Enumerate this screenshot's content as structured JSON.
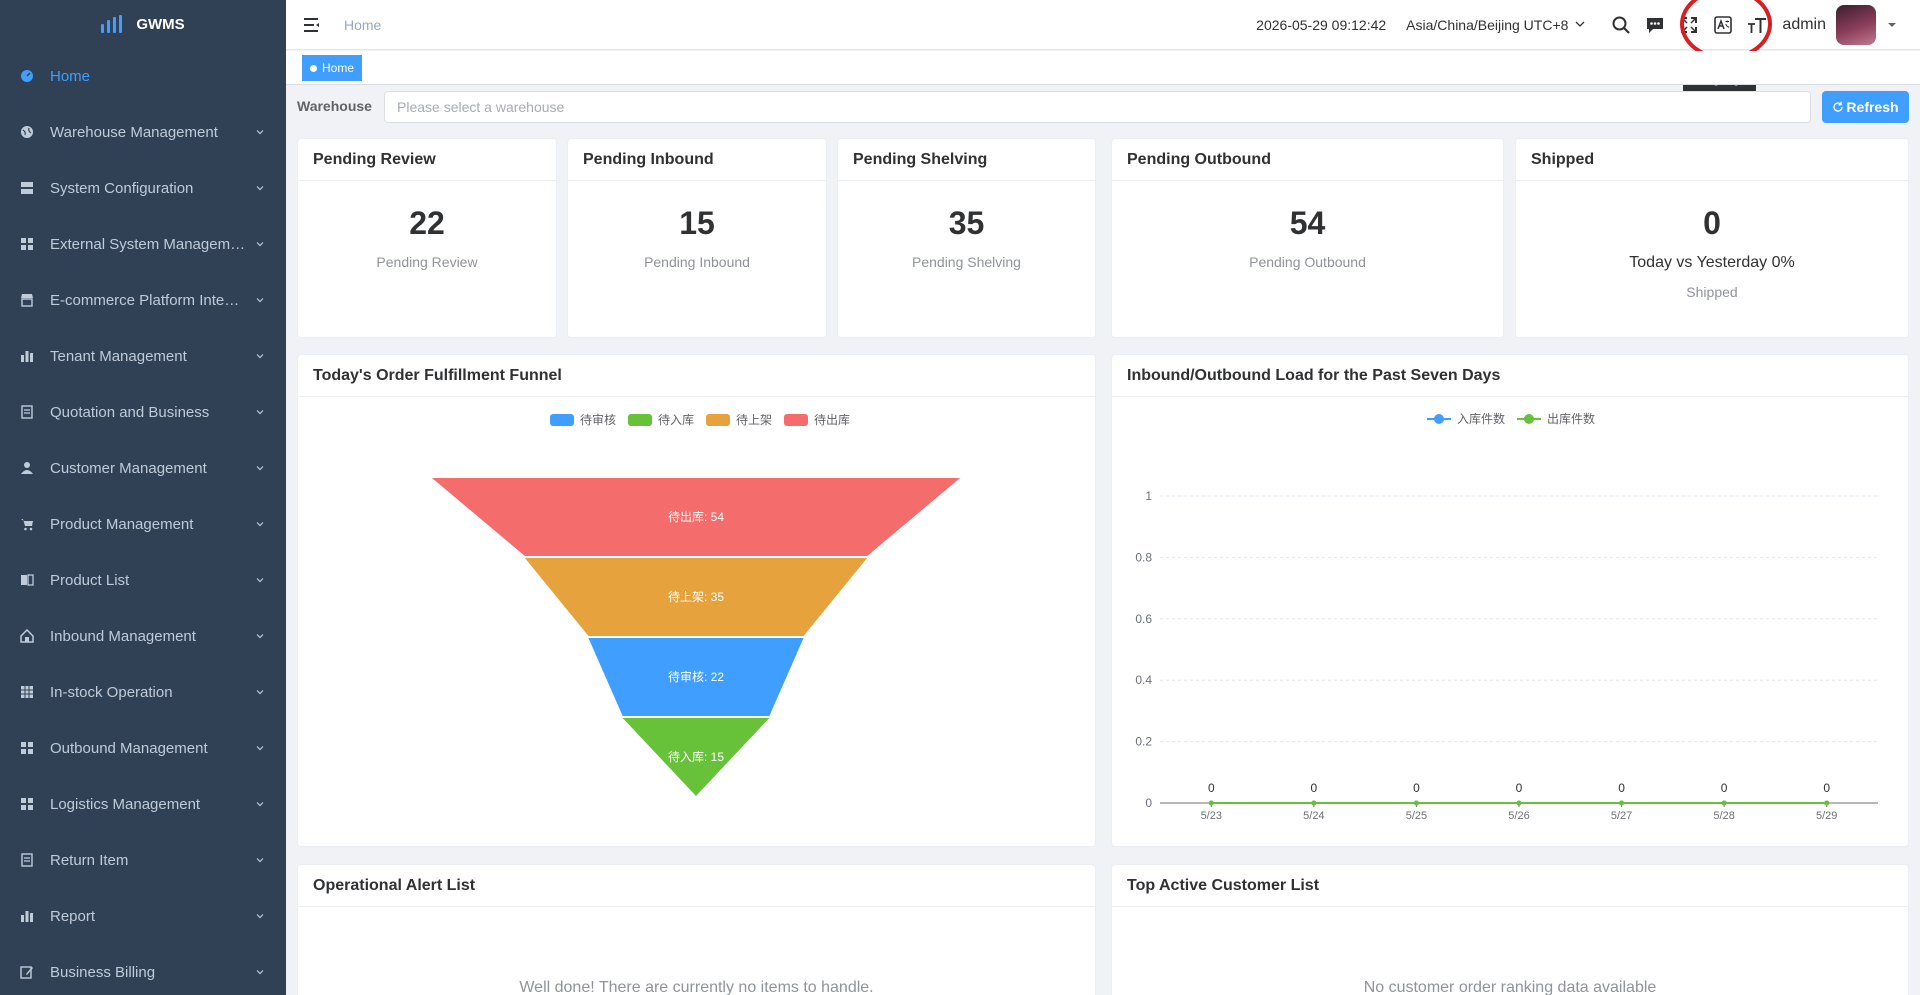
{
  "app": {
    "name": "GWMS"
  },
  "sidebar": {
    "items": [
      {
        "label": "Home",
        "icon": "dashboard-icon",
        "active": true,
        "has_children": false
      },
      {
        "label": "Warehouse Management",
        "icon": "globe-icon",
        "has_children": true
      },
      {
        "label": "System Configuration",
        "icon": "server-icon",
        "has_children": true
      },
      {
        "label": "External System Management",
        "icon": "grid-icon",
        "has_children": true
      },
      {
        "label": "E-commerce Platform Integr…",
        "icon": "store-icon",
        "has_children": true
      },
      {
        "label": "Tenant Management",
        "icon": "bar-chart-icon",
        "has_children": true
      },
      {
        "label": "Quotation and Business",
        "icon": "document-icon",
        "has_children": true
      },
      {
        "label": "Customer Management",
        "icon": "user-icon",
        "has_children": true
      },
      {
        "label": "Product Management",
        "icon": "cart-icon",
        "has_children": true
      },
      {
        "label": "Product List",
        "icon": "book-icon",
        "has_children": true
      },
      {
        "label": "Inbound Management",
        "icon": "home-icon",
        "has_children": true
      },
      {
        "label": "In-stock Operation",
        "icon": "table-icon",
        "has_children": true
      },
      {
        "label": "Outbound Management",
        "icon": "grid-icon",
        "has_children": true
      },
      {
        "label": "Logistics Management",
        "icon": "grid-icon",
        "has_children": true
      },
      {
        "label": "Return Item",
        "icon": "document-icon",
        "has_children": true
      },
      {
        "label": "Report",
        "icon": "bar-chart-icon",
        "has_children": true
      },
      {
        "label": "Business Billing",
        "icon": "edit-icon",
        "has_children": true
      }
    ]
  },
  "navbar": {
    "breadcrumb": "Home",
    "datetime": "2026-05-29 09:12:42",
    "timezone": "Asia/China/Beijing UTC+8",
    "user": "admin",
    "icons": [
      "search-icon",
      "message-icon",
      "fullscreen-icon",
      "language-icon",
      "font-size-icon"
    ],
    "tooltip": "Language"
  },
  "tags": {
    "active": "Home"
  },
  "warehouse": {
    "label": "Warehouse",
    "placeholder": "Please select a warehouse",
    "value": "",
    "refresh_label": "Refresh"
  },
  "stats": [
    {
      "title": "Pending Review",
      "value": "22",
      "sub": "Pending Review"
    },
    {
      "title": "Pending Inbound",
      "value": "15",
      "sub": "Pending Inbound"
    },
    {
      "title": "Pending Shelving",
      "value": "35",
      "sub": "Pending Shelving"
    },
    {
      "title": "Pending Outbound",
      "value": "54",
      "sub": "Pending Outbound"
    },
    {
      "title": "Shipped",
      "value": "0",
      "compare": "Today vs Yesterday 0%",
      "sub": "Shipped"
    }
  ],
  "funnel_panel": {
    "title": "Today's Order Fulfillment Funnel"
  },
  "load_panel": {
    "title": "Inbound/Outbound Load for the Past Seven Days"
  },
  "alert_panel": {
    "title": "Operational Alert List",
    "empty": "Well done! There are currently no items to handle."
  },
  "customer_panel": {
    "title": "Top Active Customer List",
    "empty": "No customer order ranking data available"
  },
  "colors": {
    "primary": "#409eff",
    "sidebar_bg": "#304156",
    "funnel_red": "#f56c6c",
    "funnel_orange": "#e6a23c",
    "funnel_blue": "#409eff",
    "funnel_green": "#67c23a"
  },
  "chart_data": [
    {
      "type": "funnel",
      "legend": [
        "待审核",
        "待入库",
        "待上架",
        "待出库"
      ],
      "legend_colors": [
        "#409eff",
        "#67c23a",
        "#e6a23c",
        "#f56c6c"
      ],
      "segments": [
        {
          "name": "待出库",
          "value": 54,
          "label": "待出库: 54",
          "color": "#f56c6c"
        },
        {
          "name": "待上架",
          "value": 35,
          "label": "待上架: 35",
          "color": "#e6a23c"
        },
        {
          "name": "待审核",
          "value": 22,
          "label": "待审核: 22",
          "color": "#409eff"
        },
        {
          "name": "待入库",
          "value": 15,
          "label": "待入库: 15",
          "color": "#67c23a"
        }
      ]
    },
    {
      "type": "line",
      "categories": [
        "5/23",
        "5/24",
        "5/25",
        "5/26",
        "5/27",
        "5/28",
        "5/29"
      ],
      "series": [
        {
          "name": "入库件数",
          "values": [
            0,
            0,
            0,
            0,
            0,
            0,
            0
          ],
          "color": "#409eff"
        },
        {
          "name": "出库件数",
          "values": [
            0,
            0,
            0,
            0,
            0,
            0,
            0
          ],
          "color": "#67c23a"
        }
      ],
      "ylim": [
        0,
        1
      ],
      "yticks": [
        "0",
        "0.2",
        "0.4",
        "0.6",
        "0.8",
        "1"
      ],
      "data_labels": [
        "0",
        "0",
        "0",
        "0",
        "0",
        "0",
        "0"
      ],
      "grid": true,
      "legend_position": "top-center"
    }
  ]
}
